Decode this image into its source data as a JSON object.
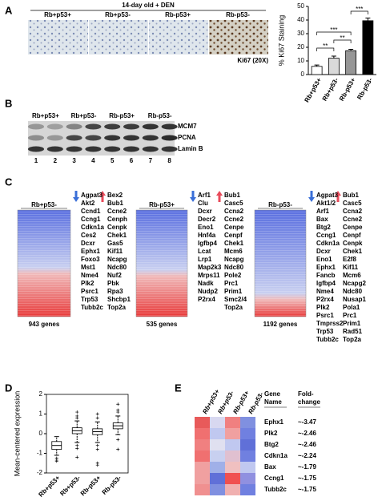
{
  "panel_labels": [
    "A",
    "B",
    "C",
    "D",
    "E"
  ],
  "panel_a": {
    "title": "14-day old + DEN",
    "image_labels": [
      "Rb+p53+",
      "Rb+p53-",
      "Rb-p53+",
      "Rb-p53-"
    ],
    "stain_label": "Ki67 (20X)"
  },
  "chart_data": [
    {
      "type": "bar",
      "ylabel": "% Ki67 Staining",
      "categories": [
        "Rb+p53+",
        "Rb+p53-",
        "Rb-p53+",
        "Rb-p53-"
      ],
      "values": [
        6,
        12,
        17.5,
        39.5
      ],
      "errors": [
        1,
        1.5,
        1,
        2
      ],
      "colors": [
        "#ffffff",
        "#d9d9d9",
        "#969696",
        "#000000"
      ],
      "ylim": [
        0,
        50
      ],
      "yticks": [
        0,
        10,
        20,
        30,
        40,
        50
      ],
      "significance_labels": [
        "***",
        "***",
        "**",
        "**"
      ]
    },
    {
      "type": "box",
      "ylabel": "Mean-centered expression",
      "categories": [
        "Rb+p53+",
        "Rb+p53-",
        "Rb-p53+",
        "Rb-p53-"
      ],
      "boxes": [
        {
          "whislo": -1.1,
          "q1": -0.8,
          "med": -0.6,
          "q3": -0.4,
          "whishi": -0.15,
          "fliers": [
            -1.25,
            -1.35,
            -1.4
          ]
        },
        {
          "whislo": -0.45,
          "q1": 0,
          "med": 0.15,
          "q3": 0.3,
          "whishi": 0.65,
          "fliers": [
            0.8,
            0.9,
            1.1,
            -0.6,
            -0.75,
            -1.2
          ]
        },
        {
          "whislo": -0.45,
          "q1": -0.05,
          "med": 0.1,
          "q3": 0.25,
          "whishi": 0.6,
          "fliers": [
            0.8,
            1.0,
            -0.6,
            -0.8,
            -1.5,
            -1.6
          ]
        },
        {
          "whislo": -0.05,
          "q1": 0.25,
          "med": 0.4,
          "q3": 0.55,
          "whishi": 0.9,
          "fliers": [
            1.1,
            1.2,
            1.5,
            -0.3,
            -0.8
          ]
        }
      ],
      "ylim": [
        -2,
        2
      ],
      "yticks": [
        -2,
        -1,
        0,
        1,
        2
      ]
    }
  ],
  "panel_b": {
    "group_labels": [
      "Rb+p53+",
      "Rb+p53-",
      "Rb-p53+",
      "Rb-p53-"
    ],
    "bands": [
      "MCM7",
      "PCNA",
      "Lamin B"
    ],
    "lanes": [
      "1",
      "2",
      "3",
      "4",
      "5",
      "6",
      "7",
      "8"
    ]
  },
  "panel_c": {
    "heatmaps": [
      {
        "title": "Rb+p53-",
        "count": "943 genes",
        "down_genes": [
          "Agpat3",
          "Akt2",
          "Ccnd1",
          "Ccng1",
          "Cdkn1a",
          "Ces2",
          "Dcxr",
          "Ephx1",
          "Foxo3",
          "Mst1",
          "Nme4",
          "Plk2",
          "Psrc1",
          "Trp53",
          "Tubb2c"
        ],
        "up_genes": [
          "Bex2",
          "Bub1",
          "Ccne2",
          "Cenph",
          "Cenpk",
          "Chek1",
          "Gas5",
          "Kif11",
          "Ncapg",
          "Ndc80",
          "Nuf2",
          "Pbk",
          "Rpa3",
          "Shcbp1",
          "Top2a"
        ]
      },
      {
        "title": "Rb-p53+",
        "count": "535 genes",
        "down_genes": [
          "Arf1",
          "Clu",
          "Dcxr",
          "Decr2",
          "Eno1",
          "Hnf4a",
          "Igfbp4",
          "Lcat",
          "Lrp1",
          "Map2k3",
          "Mrps11",
          "Nadk",
          "Nudp2",
          "P2rx4"
        ],
        "up_genes": [
          "Bub1",
          "Casc5",
          "Ccna2",
          "Ccne2",
          "Cenpe",
          "Cenpf",
          "Chek1",
          "Mcm6",
          "Ncapg",
          "Ndc80",
          "Pole2",
          "Prc1",
          "Prim1",
          "Smc2/4",
          "Top2a"
        ]
      },
      {
        "title": "Rb-p53-",
        "count": "1192 genes",
        "down_genes": [
          "Agpat3",
          "Akt1/2",
          "Arf1",
          "Bax",
          "Btg2",
          "Ccng1",
          "Cdkn1a",
          "Dcxr",
          "Eno1",
          "Ephx1",
          "Fancb",
          "Igfbp4",
          "Nme4",
          "P2rx4",
          "Plk2",
          "Psrc1",
          "Tmprss2",
          "Trp53",
          "Tubb2c"
        ],
        "up_genes": [
          "Bub1",
          "Casc5",
          "Ccna2",
          "Ccne2",
          "Cenpe",
          "Cenpf",
          "Cenpk",
          "Chek1",
          "E2f8",
          "Kif11",
          "Mcm6",
          "Ncapg2",
          "Ndc80",
          "Nusap1",
          "Pola1",
          "Prc1",
          "Prim1",
          "Rad51",
          "Top2a"
        ]
      }
    ]
  },
  "panel_e": {
    "columns": [
      "Rb+p53+",
      "Rb+p53-",
      "Rb-p53+",
      "Rb-p53-"
    ],
    "gene_header": [
      "Gene",
      "Name"
    ],
    "fold_header": [
      "Fold-",
      "change"
    ],
    "rows": [
      {
        "gene": "Ephx1",
        "fold": "~-3.47"
      },
      {
        "gene": "Plk2",
        "fold": "~-2.46"
      },
      {
        "gene": "Btg2",
        "fold": "~-2.46"
      },
      {
        "gene": "Cdkn1a",
        "fold": "~-2.24"
      },
      {
        "gene": "Bax",
        "fold": "~-1.79"
      },
      {
        "gene": "Ccng1",
        "fold": "~-1.75"
      },
      {
        "gene": "Tubb2c",
        "fold": "~-1.75"
      }
    ],
    "cell_colors": [
      [
        "#e85a5a",
        "#d8d8f0",
        "#f08080",
        "#8090e0"
      ],
      [
        "#f07070",
        "#c0c8f0",
        "#f0a0a0",
        "#7080e0"
      ],
      [
        "#f08080",
        "#e0e0f0",
        "#c0c8f0",
        "#6070d8"
      ],
      [
        "#f07070",
        "#c8d0f0",
        "#e0c0d0",
        "#7080e0"
      ],
      [
        "#f0a0a0",
        "#a0b0e8",
        "#f0c0c0",
        "#c0c8f0"
      ],
      [
        "#f0a0a0",
        "#6070d8",
        "#f05050",
        "#9090e0"
      ],
      [
        "#f09090",
        "#8090e0",
        "#f0b0b0",
        "#7080e0"
      ]
    ]
  }
}
